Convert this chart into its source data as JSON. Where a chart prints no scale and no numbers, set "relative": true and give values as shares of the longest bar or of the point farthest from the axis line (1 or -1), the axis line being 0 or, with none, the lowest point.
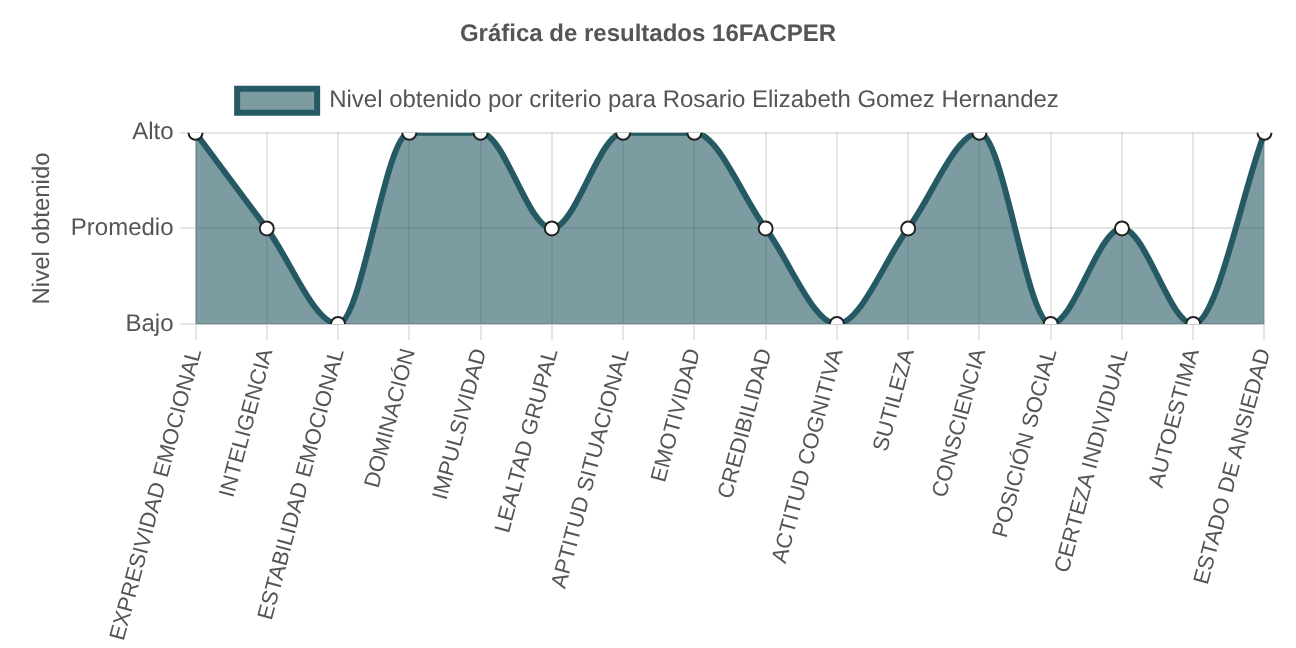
{
  "chart_data": {
    "type": "area",
    "title": "Gráfica de resultados 16FACPER",
    "ylabel": "Nivel obtenido",
    "categories": [
      "EXPRESIVIDAD EMOCIONAL",
      "INTELIGENCIA",
      "ESTABILIDAD EMOCIONAL",
      "DOMINACIÓN",
      "IMPULSIVIDAD",
      "LEALTAD GRUPAL",
      "APTITUD SITUACIONAL",
      "EMOTIVIDAD",
      "CREDIBILIDAD",
      "ACTITUD COGNITIVA",
      "SUTILEZA",
      "CONSCIENCIA",
      "POSICIÓN SOCIAL",
      "CERTEZA INDIVIDUAL",
      "AUTOESTIMA",
      "ESTADO DE ANSIEDAD"
    ],
    "series": [
      {
        "name": "Nivel obtenido por criterio para Rosario Elizabeth Gomez Hernandez",
        "color": "#255a64",
        "values": [
          1,
          0.5,
          0,
          1,
          1,
          0.5,
          1,
          1,
          0.5,
          0,
          0.5,
          1,
          0,
          0.5,
          0,
          1
        ]
      }
    ],
    "relative": true,
    "y_categories": [
      "Alto",
      "Promedio",
      "Bajo"
    ],
    "grid": true,
    "legend": "top",
    "marker": "circle"
  }
}
